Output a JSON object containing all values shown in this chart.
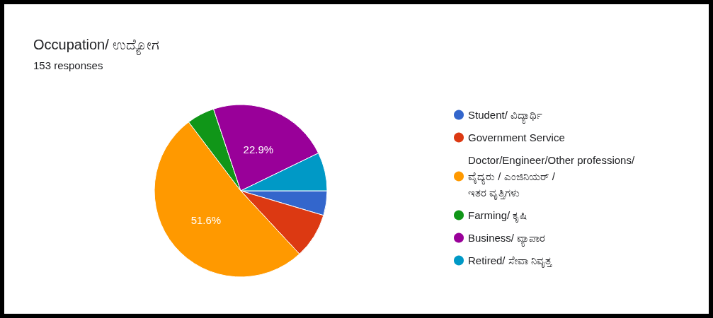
{
  "chart_data": {
    "type": "pie",
    "title": "Occupation/ ಉದ್ಯೋಗ",
    "subtitle": "153 responses",
    "categories": [
      "Student/ ವಿದ್ಯಾರ್ಥಿ",
      "Government Service",
      "Doctor/Engineer/Other professions/ ವೈದ್ಯರು / ಎಂಜಿನಿಯರ್ / ಇತರ ವೃತ್ತಿಗಳು",
      "Farming/ ಕೃಷಿ",
      "Business/ ವ್ಯಾಪಾರ",
      "Retired/ ಸೇವಾ ನಿವೃತ್ತ"
    ],
    "values": [
      4.6,
      8.5,
      51.6,
      5.2,
      22.9,
      7.2
    ],
    "colors": [
      "#3366cc",
      "#dc3912",
      "#ff9900",
      "#109618",
      "#990099",
      "#0099c6"
    ],
    "value_labels": [
      null,
      null,
      "51.6%",
      null,
      "22.9%",
      null
    ],
    "legend": "right"
  }
}
